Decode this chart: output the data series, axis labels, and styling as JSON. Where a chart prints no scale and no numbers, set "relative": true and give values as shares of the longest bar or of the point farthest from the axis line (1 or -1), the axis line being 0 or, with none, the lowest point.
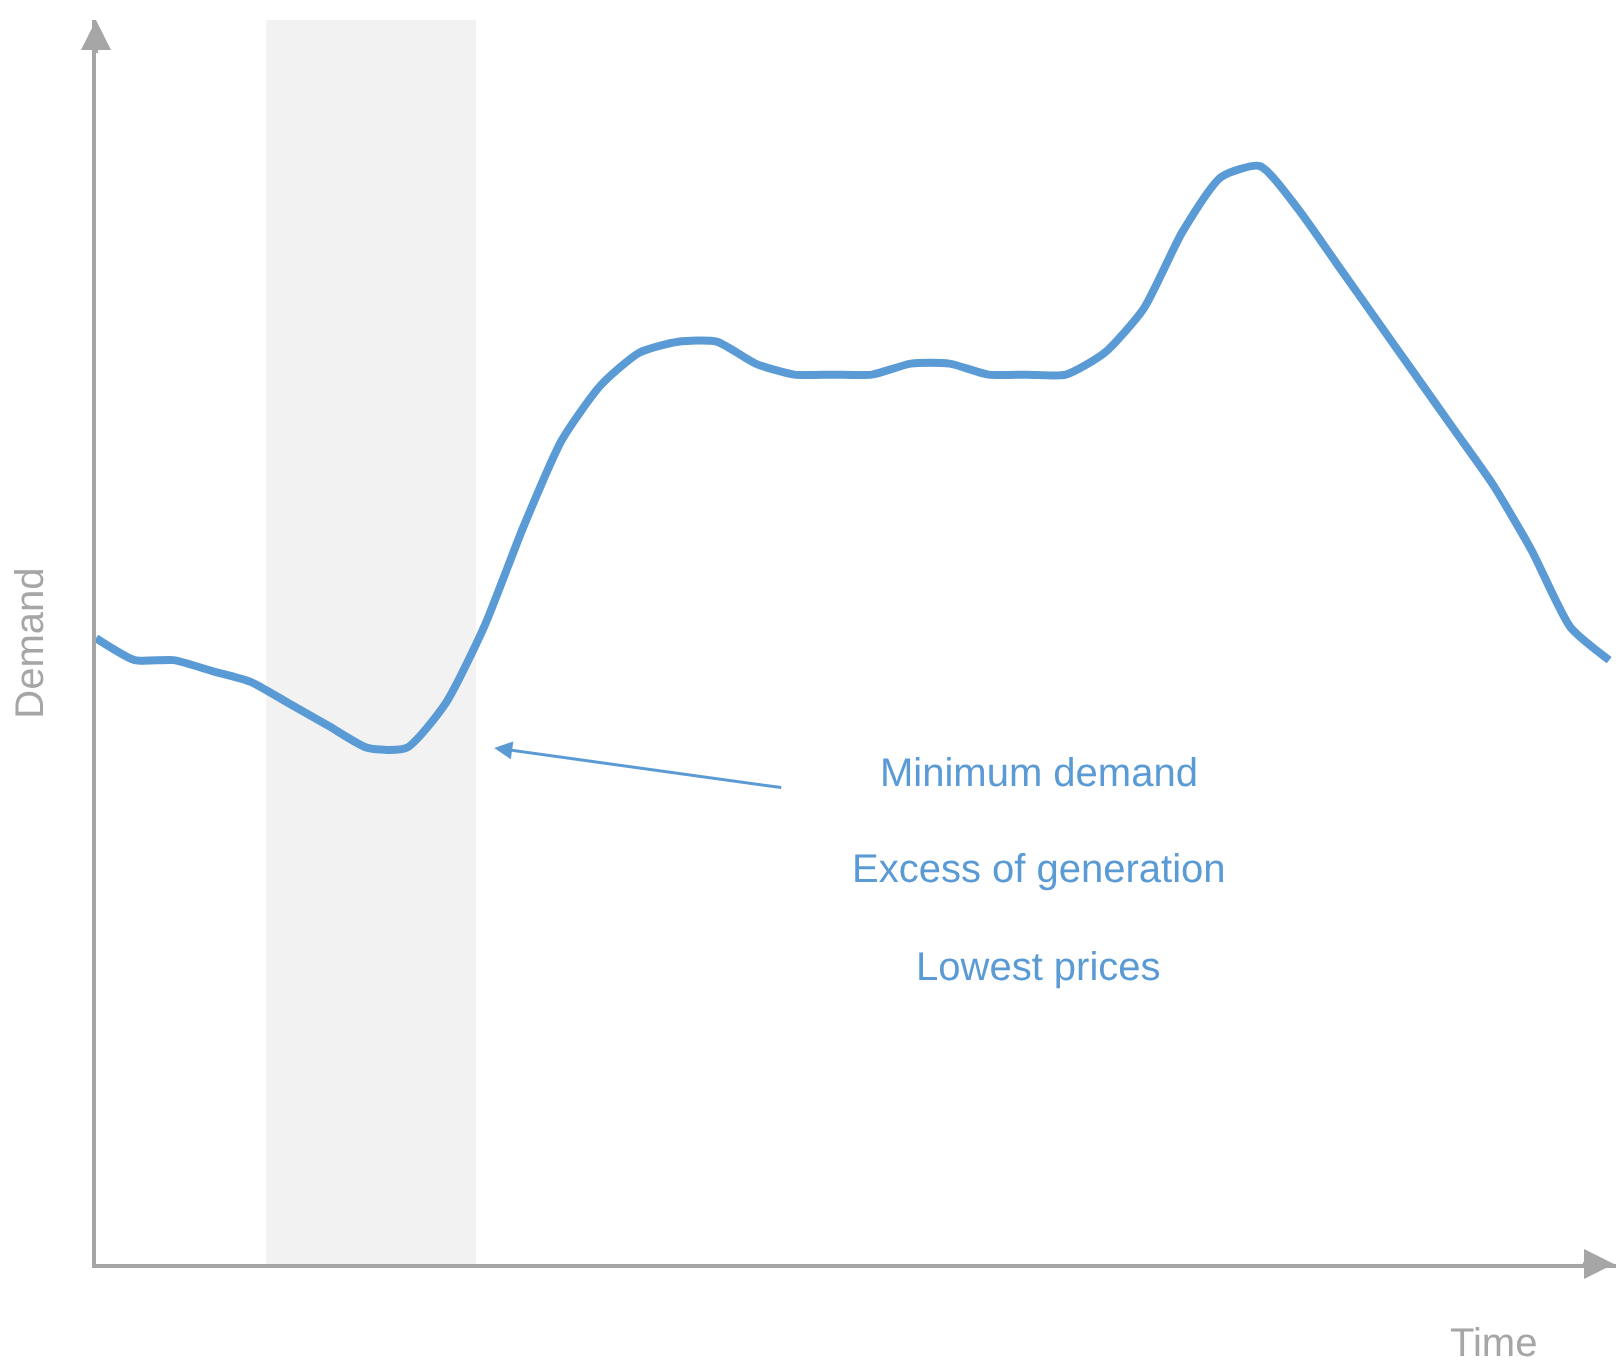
{
  "chart_data": {
    "type": "line",
    "relative": true,
    "xlabel": "Time",
    "ylabel": "Demand",
    "categories": [
      null,
      null,
      null,
      null,
      null,
      null,
      null,
      null,
      null,
      null,
      null,
      null,
      null,
      null,
      null,
      null,
      null,
      null,
      null,
      null,
      null,
      null,
      null,
      null,
      null,
      null,
      null,
      null,
      null,
      null,
      null,
      null,
      null,
      null,
      null,
      null,
      null,
      null,
      null,
      null
    ],
    "series": [
      {
        "color": "#5b9bd5",
        "values": [
          0.57,
          0.55,
          0.55,
          0.54,
          0.53,
          0.51,
          0.49,
          0.47,
          0.47,
          0.51,
          0.58,
          0.67,
          0.75,
          0.8,
          0.83,
          0.84,
          0.84,
          0.82,
          0.81,
          0.81,
          0.81,
          0.82,
          0.82,
          0.81,
          0.81,
          0.81,
          0.83,
          0.87,
          0.94,
          0.99,
          1.0,
          0.96,
          0.91,
          0.86,
          0.81,
          0.76,
          0.71,
          0.65,
          0.58,
          0.55
        ]
      }
    ],
    "annotations": [
      "Minimum demand",
      "Excess of generation",
      "Lowest prices"
    ],
    "grid": false,
    "marker": "none",
    "line_style": "solid"
  }
}
